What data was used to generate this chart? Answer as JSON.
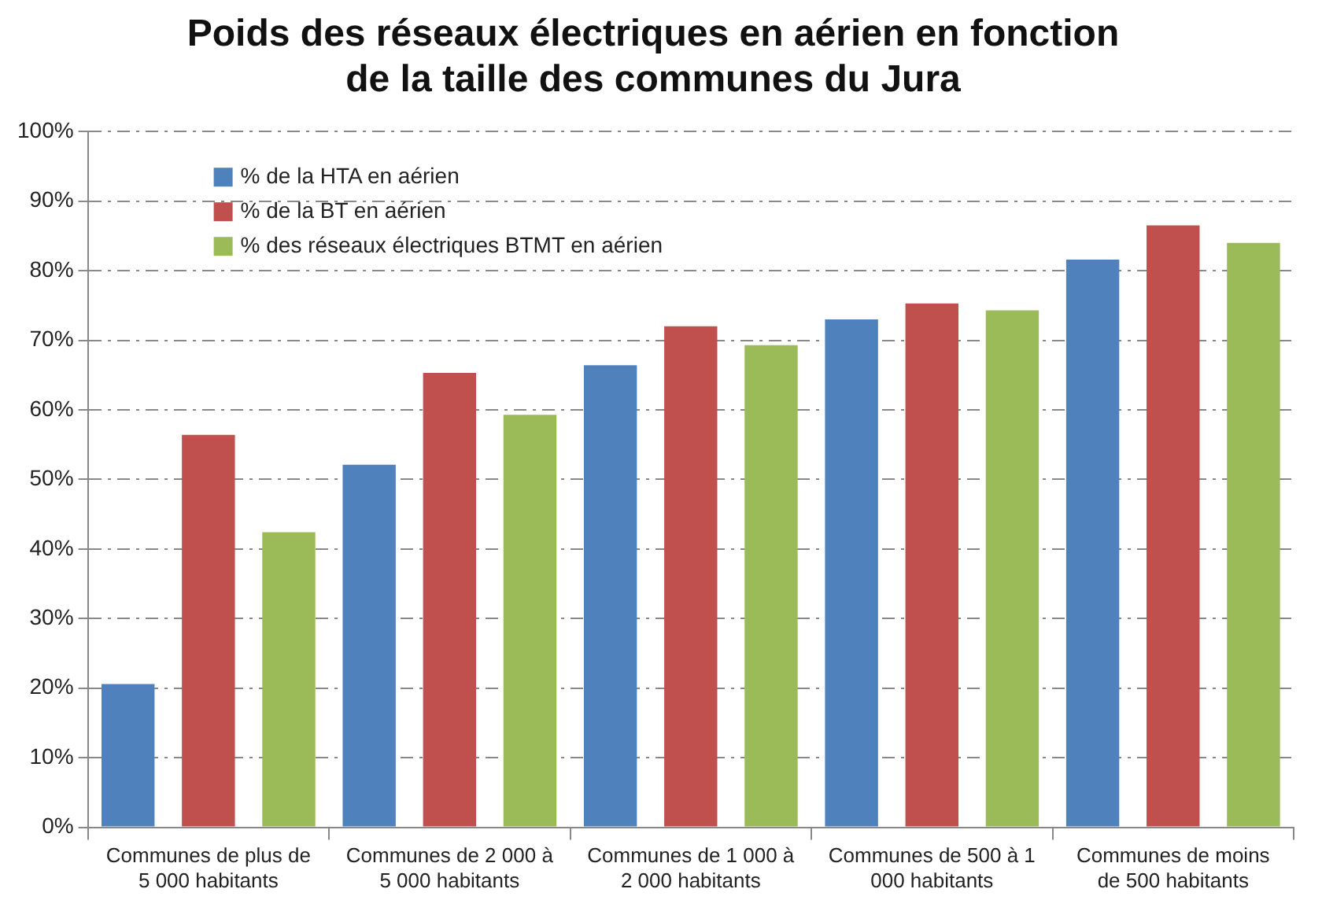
{
  "chart_data": {
    "type": "bar",
    "title": "Poids des réseaux électriques en aérien en fonction de la taille des communes du Jura",
    "categories": [
      "Communes de plus de 5 000 habitants",
      "Communes de 2 000 à 5 000 habitants",
      "Communes de 1 000 à 2 000 habitants",
      "Communes de 500 à 1 000 habitants",
      "Communes de moins de 500 habitants"
    ],
    "series": [
      {
        "name": "% de la HTA en aérien",
        "color": "#4f81bd",
        "values": [
          20.6,
          52.1,
          66.4,
          73.0,
          81.6
        ]
      },
      {
        "name": "% de la BT en aérien",
        "color": "#c0504d",
        "values": [
          56.4,
          65.3,
          72.0,
          75.3,
          86.5
        ]
      },
      {
        "name": "% des réseaux électriques BTMT en aérien",
        "color": "#9bbb59",
        "values": [
          42.4,
          59.3,
          69.3,
          74.3,
          84.0
        ]
      }
    ],
    "ylim": [
      0,
      100
    ],
    "yticks": [
      {
        "value": 0,
        "label": "0%"
      },
      {
        "value": 10,
        "label": "10%"
      },
      {
        "value": 20,
        "label": "20%"
      },
      {
        "value": 30,
        "label": "30%"
      },
      {
        "value": 40,
        "label": "40%"
      },
      {
        "value": 50,
        "label": "50%"
      },
      {
        "value": 60,
        "label": "60%"
      },
      {
        "value": 70,
        "label": "70%"
      },
      {
        "value": 80,
        "label": "80%"
      },
      {
        "value": 90,
        "label": "90%"
      },
      {
        "value": 100,
        "label": "100%"
      }
    ],
    "grid": "y",
    "legend": "top left"
  }
}
